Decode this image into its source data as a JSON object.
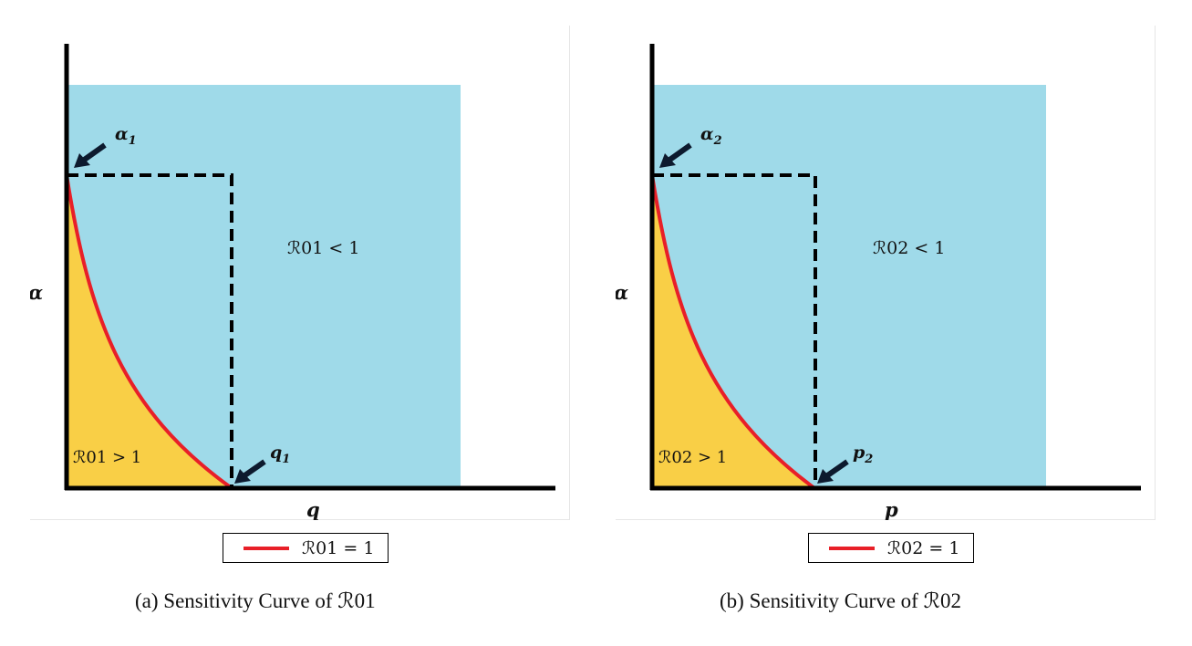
{
  "panels": [
    {
      "id": "a",
      "x_axis_label": "q",
      "y_axis_label": "α",
      "y_intercept_label": {
        "base": "α",
        "sub": "1"
      },
      "x_intercept_label": {
        "base": "q",
        "sub": "1"
      },
      "region_below_label": "ℛ01 > 1",
      "region_above_label": "ℛ01 < 1",
      "legend_label": "ℛ01 = 1",
      "caption": "(a) Sensitivity Curve of ℛ01"
    },
    {
      "id": "b",
      "x_axis_label": "p",
      "y_axis_label": "α",
      "y_intercept_label": {
        "base": "α",
        "sub": "2"
      },
      "x_intercept_label": {
        "base": "p",
        "sub": "2"
      },
      "region_below_label": "ℛ02 > 1",
      "region_above_label": "ℛ02 < 1",
      "legend_label": "ℛ02 = 1",
      "caption": "(b) Sensitivity Curve of ℛ02"
    }
  ],
  "colors": {
    "region_above": "#9fdae9",
    "region_below": "#f9cf46",
    "curve": "#e81f28",
    "axes": "#000000",
    "arrow": "#0d1a2e"
  }
}
